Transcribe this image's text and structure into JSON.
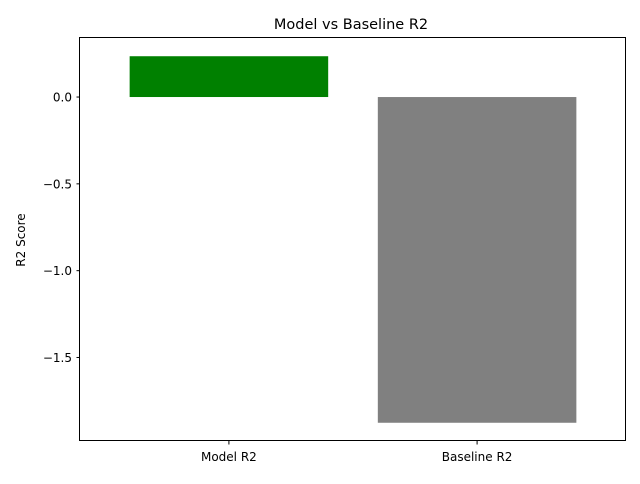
{
  "chart_data": {
    "type": "bar",
    "title": "Model vs Baseline R2",
    "xlabel": "",
    "ylabel": "R2 Score",
    "categories": [
      "Model R2",
      "Baseline R2"
    ],
    "values": [
      0.235,
      -1.876
    ],
    "colors": [
      "#008000",
      "#808080"
    ],
    "ylim": [
      -1.981,
      0.34
    ],
    "yticks": [
      0.0,
      -0.5,
      -1.0,
      -1.5
    ],
    "ytick_labels": [
      "0.0",
      "−0.5",
      "−1.0",
      "−1.5"
    ],
    "grid": false,
    "legend": "none"
  }
}
